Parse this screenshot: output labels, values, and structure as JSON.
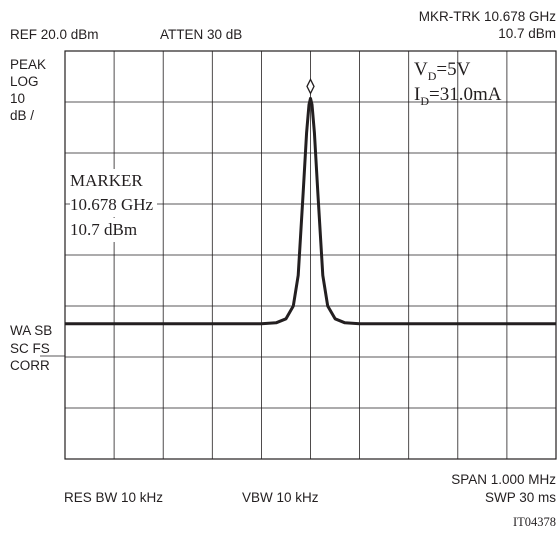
{
  "header": {
    "ref": "REF 20.0 dBm",
    "atten": "ATTEN 30 dB",
    "mkr_trk": "MKR-TRK 10.678 GHz",
    "mkr_level": "10.7 dBm"
  },
  "left_labels": {
    "peak": "PEAK",
    "log": "LOG",
    "div": "10",
    "unit": "dB /",
    "wa_sb": "WA SB",
    "sc_fs": "SC FS",
    "corr": "CORR"
  },
  "conditions": {
    "vd_main": "V",
    "vd_sub": "D",
    "vd_val": "=5V",
    "id_main": "I",
    "id_sub": "D",
    "id_val": "=31.0mA"
  },
  "marker": {
    "title": "MARKER",
    "freq": "10.678 GHz",
    "level": "10.7 dBm"
  },
  "footer": {
    "span": "SPAN 1.000 MHz",
    "res_bw": "RES BW 10 kHz",
    "vbw": "VBW 10 kHz",
    "swp": "SWP 30 ms",
    "fig_id": "IT04378"
  },
  "colors": {
    "ink": "#231f20",
    "background": "#ffffff"
  },
  "chart_data": {
    "type": "line",
    "x_divisions": 10,
    "y_divisions": 8,
    "x_unit": "MHz offset from center",
    "span": 1.0,
    "ref_level": 20.0,
    "db_per_div": 10,
    "noise_floor": -33.5,
    "trace": {
      "x": [
        -0.5,
        -0.1,
        -0.07,
        -0.05,
        -0.035,
        -0.025,
        -0.015,
        -0.008,
        -0.003,
        0.0,
        0.003,
        0.008,
        0.015,
        0.025,
        0.035,
        0.05,
        0.07,
        0.1,
        0.5
      ],
      "y": [
        -33.5,
        -33.5,
        -33.3,
        -32.5,
        -30,
        -24,
        -8,
        4,
        9.5,
        10.7,
        9.5,
        4,
        -8,
        -24,
        -30,
        -32.5,
        -33.3,
        -33.5,
        -33.5
      ]
    },
    "marker": {
      "x": 0.0,
      "y": 10.7,
      "shape": "diamond"
    }
  }
}
